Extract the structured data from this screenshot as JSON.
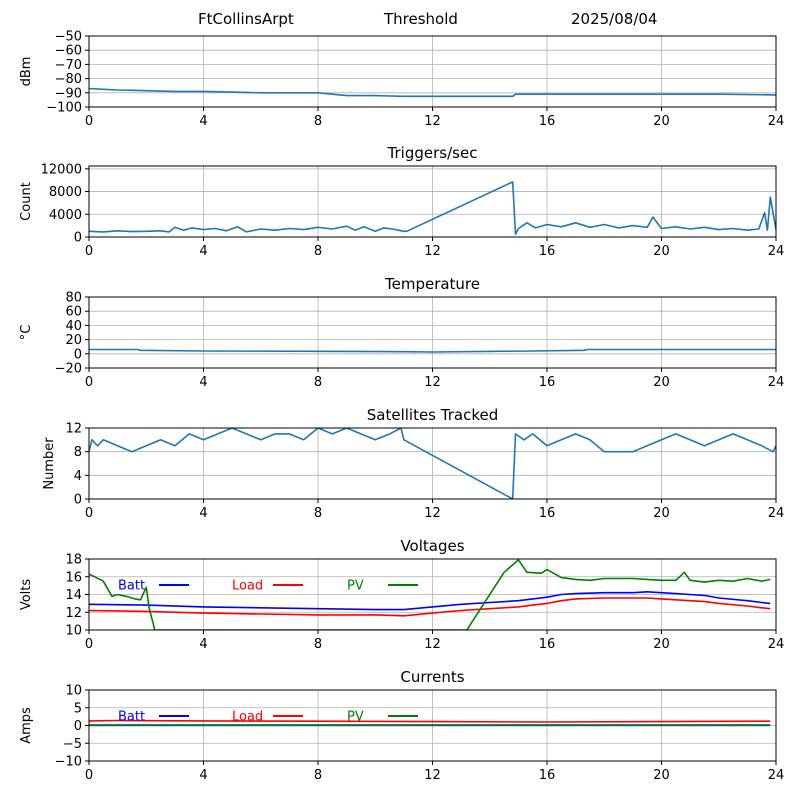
{
  "header": {
    "station": "FtCollinsArpt",
    "mode": "Threshold",
    "date": "2025/08/04"
  },
  "chart_data": [
    {
      "type": "line",
      "title": "",
      "xlabel": "",
      "ylabel": "dBm",
      "xlim": [
        0,
        24
      ],
      "ylim": [
        -100,
        -50
      ],
      "xticks": [
        0,
        4,
        8,
        12,
        16,
        20,
        24
      ],
      "yticks": [
        -100,
        -90,
        -80,
        -70,
        -60,
        -50
      ],
      "grid": true,
      "series": [
        {
          "color": "#1f77b4",
          "x": [
            0,
            0.5,
            1,
            2,
            3,
            4,
            5,
            6,
            7,
            8,
            8.5,
            9,
            10,
            11,
            12,
            13,
            14,
            14.8,
            14.9,
            16,
            18,
            20,
            22,
            24
          ],
          "y": [
            -87,
            -87.5,
            -88,
            -88.5,
            -89,
            -89,
            -89.5,
            -90,
            -90,
            -90,
            -91,
            -92,
            -92,
            -92.5,
            -92.5,
            -92.5,
            -92.5,
            -92.5,
            -91,
            -91,
            -91,
            -91,
            -91,
            -91.5
          ]
        }
      ]
    },
    {
      "type": "line",
      "title": "Triggers/sec",
      "xlabel": "",
      "ylabel": "Count",
      "xlim": [
        0,
        24
      ],
      "ylim": [
        0,
        12500
      ],
      "xticks": [
        0,
        4,
        8,
        12,
        16,
        20,
        24
      ],
      "yticks": [
        0,
        4000,
        8000,
        12000
      ],
      "grid": true,
      "series": [
        {
          "color": "#1f77b4",
          "x": [
            0,
            0.5,
            1,
            1.5,
            2,
            2.5,
            2.8,
            3,
            3.3,
            3.6,
            4,
            4.4,
            4.8,
            5.2,
            5.5,
            6,
            6.5,
            7,
            7.5,
            8,
            8.5,
            9,
            9.3,
            9.6,
            10,
            10.3,
            10.6,
            11,
            11.1,
            14.8,
            14.9,
            15,
            15.3,
            15.6,
            16,
            16.5,
            17,
            17.5,
            18,
            18.5,
            19,
            19.5,
            19.7,
            20,
            20.5,
            21,
            21.5,
            22,
            22.5,
            23,
            23.4,
            23.6,
            23.7,
            23.8,
            24
          ],
          "y": [
            1000,
            900,
            1100,
            950,
            1000,
            1100,
            900,
            1700,
            1200,
            1600,
            1300,
            1500,
            1100,
            1800,
            900,
            1400,
            1200,
            1500,
            1300,
            1700,
            1400,
            1900,
            1200,
            1800,
            1000,
            1600,
            1400,
            1000,
            1000,
            9700,
            500,
            1500,
            2500,
            1600,
            2200,
            1800,
            2500,
            1700,
            2200,
            1600,
            2000,
            1700,
            3500,
            1500,
            1800,
            1400,
            1700,
            1300,
            1500,
            1200,
            1400,
            4300,
            1200,
            7000,
            1300
          ]
        }
      ]
    },
    {
      "type": "line",
      "title": "Temperature",
      "xlabel": "",
      "ylabel": "°C",
      "xlim": [
        0,
        24
      ],
      "ylim": [
        -20,
        80
      ],
      "xticks": [
        0,
        4,
        8,
        12,
        16,
        20,
        24
      ],
      "yticks": [
        -20,
        0,
        20,
        40,
        60,
        80
      ],
      "grid": true,
      "series": [
        {
          "color": "#1f77b4",
          "x": [
            0,
            1.7,
            1.8,
            4,
            8,
            11,
            12,
            15.5,
            17.3,
            17.4,
            24
          ],
          "y": [
            6,
            6,
            5,
            4,
            3.5,
            3,
            2.5,
            4,
            5,
            6,
            6
          ]
        }
      ]
    },
    {
      "type": "line",
      "title": "Satellites Tracked",
      "xlabel": "",
      "ylabel": "Number",
      "xlim": [
        0,
        24
      ],
      "ylim": [
        0,
        12
      ],
      "xticks": [
        0,
        4,
        8,
        12,
        16,
        20,
        24
      ],
      "yticks": [
        0,
        4,
        8,
        12
      ],
      "grid": true,
      "series": [
        {
          "color": "#1f77b4",
          "x": [
            0,
            0.1,
            0.3,
            0.5,
            1,
            1.5,
            2,
            2.5,
            3,
            3.5,
            4,
            4.5,
            5,
            5.5,
            6,
            6.5,
            7,
            7.5,
            8,
            8.5,
            9,
            9.5,
            10,
            10.5,
            10.9,
            11,
            14.8,
            14.9,
            15.2,
            15.5,
            16,
            16.5,
            17,
            17.5,
            18,
            18.5,
            19,
            19.5,
            20,
            20.5,
            21,
            21.5,
            22,
            22.5,
            23,
            23.5,
            23.9,
            24
          ],
          "y": [
            8,
            10,
            9,
            10,
            9,
            8,
            9,
            10,
            9,
            11,
            10,
            11,
            12,
            11,
            10,
            11,
            11,
            10,
            12,
            11,
            12,
            11,
            10,
            11,
            12,
            10,
            0,
            11,
            10,
            11,
            9,
            10,
            11,
            10,
            8,
            8,
            8,
            9,
            10,
            11,
            10,
            9,
            10,
            11,
            10,
            9,
            8,
            9
          ]
        }
      ]
    },
    {
      "type": "line",
      "title": "Voltages",
      "xlabel": "",
      "ylabel": "Volts",
      "xlim": [
        0,
        24
      ],
      "ylim": [
        10,
        18
      ],
      "xticks": [
        0,
        4,
        8,
        12,
        16,
        20,
        24
      ],
      "yticks": [
        10,
        12,
        14,
        16,
        18
      ],
      "grid": true,
      "legend": "top-left",
      "series": [
        {
          "name": "Batt",
          "color": "#0000ff",
          "x": [
            0,
            2,
            4,
            6,
            8,
            10,
            11,
            12,
            13,
            14,
            15,
            15.5,
            16,
            16.5,
            17,
            18,
            19,
            19.5,
            20,
            20.5,
            21,
            21.5,
            22,
            23,
            23.5,
            23.8
          ],
          "y": [
            12.9,
            12.8,
            12.6,
            12.5,
            12.4,
            12.3,
            12.3,
            12.6,
            12.9,
            13.1,
            13.3,
            13.5,
            13.7,
            14.0,
            14.1,
            14.2,
            14.2,
            14.3,
            14.2,
            14.1,
            14.0,
            13.9,
            13.6,
            13.3,
            13.1,
            13.0
          ]
        },
        {
          "name": "Load",
          "color": "#ff0000",
          "x": [
            0,
            2,
            4,
            6,
            8,
            10,
            11,
            12,
            13,
            14,
            15,
            15.5,
            16,
            16.5,
            17,
            18,
            19,
            19.5,
            20,
            20.5,
            21,
            21.5,
            22,
            23,
            23.5,
            23.8
          ],
          "y": [
            12.2,
            12.1,
            11.9,
            11.8,
            11.7,
            11.7,
            11.6,
            11.9,
            12.2,
            12.4,
            12.6,
            12.8,
            13.0,
            13.3,
            13.5,
            13.6,
            13.6,
            13.6,
            13.5,
            13.4,
            13.3,
            13.2,
            13.0,
            12.7,
            12.5,
            12.4
          ]
        },
        {
          "name": "PV",
          "color": "#008000",
          "x": [
            0,
            0.2,
            0.5,
            0.8,
            1,
            1.3,
            1.6,
            1.8,
            2.0,
            2.1,
            2.3,
            13.2,
            14.5,
            15.0,
            15.3,
            15.8,
            16.0,
            16.5,
            17,
            17.5,
            18,
            18.5,
            19,
            19.5,
            20,
            20.5,
            20.8,
            21,
            21.5,
            22,
            22.5,
            23,
            23.5,
            23.8
          ],
          "y": [
            16.3,
            16.0,
            15.5,
            13.8,
            14.0,
            13.8,
            13.5,
            13.4,
            14.8,
            12.5,
            10.0,
            10.0,
            16.5,
            17.9,
            16.5,
            16.4,
            16.8,
            15.9,
            15.7,
            15.6,
            15.8,
            15.8,
            15.8,
            15.7,
            15.6,
            15.6,
            16.5,
            15.6,
            15.4,
            15.6,
            15.5,
            15.8,
            15.5,
            15.7
          ]
        }
      ]
    },
    {
      "type": "line",
      "title": "Currents",
      "xlabel": "",
      "ylabel": "Amps",
      "xlim": [
        0,
        24
      ],
      "ylim": [
        -10,
        10
      ],
      "xticks": [
        0,
        4,
        8,
        12,
        16,
        20,
        24
      ],
      "yticks": [
        -10,
        -5,
        0,
        5,
        10
      ],
      "grid": true,
      "legend": "top-left",
      "series": [
        {
          "name": "Batt",
          "color": "#0000ff",
          "x": [
            0,
            4,
            8,
            12,
            16,
            20,
            23.8
          ],
          "y": [
            0.1,
            0.1,
            0.1,
            0.1,
            0.1,
            0.1,
            0.1
          ]
        },
        {
          "name": "Load",
          "color": "#ff0000",
          "x": [
            0,
            1,
            4,
            8,
            12,
            16,
            20,
            23.8
          ],
          "y": [
            1.3,
            1.4,
            1.3,
            1.2,
            1.1,
            1.0,
            1.1,
            1.2
          ]
        },
        {
          "name": "PV",
          "color": "#008000",
          "x": [
            0,
            4,
            8,
            12,
            16,
            20,
            23.8
          ],
          "y": [
            0.0,
            0.0,
            0.0,
            0.0,
            0.0,
            0.0,
            0.0
          ]
        }
      ]
    }
  ]
}
